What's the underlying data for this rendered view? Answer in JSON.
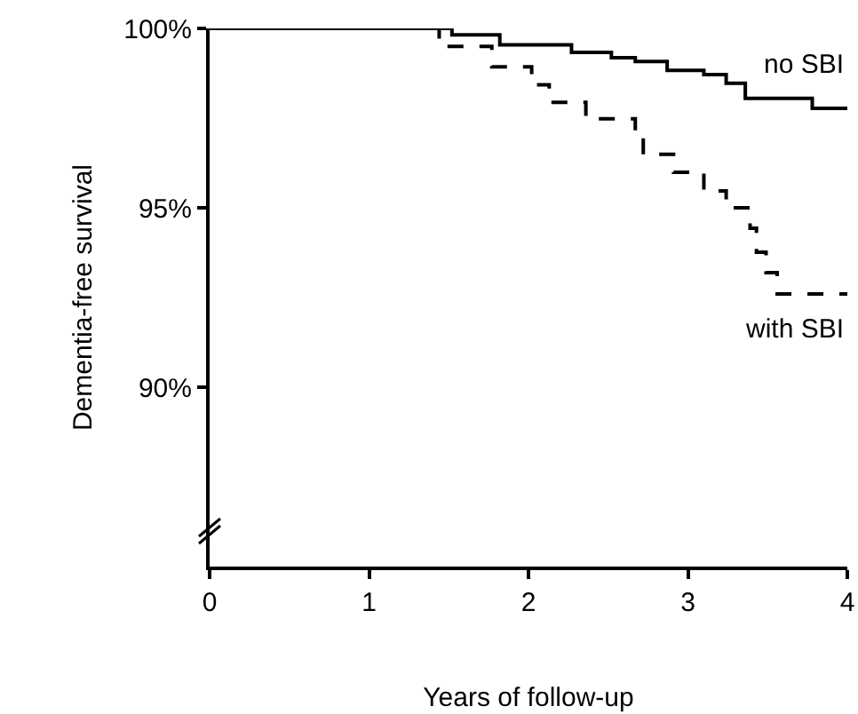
{
  "chart_data": {
    "type": "step",
    "xlabel": "Years of follow-up",
    "ylabel": "Dementia-free survival",
    "xlim": [
      0,
      4
    ],
    "xticks": [
      0,
      1,
      2,
      3,
      4
    ],
    "ylim": [
      85,
      100
    ],
    "yticks": [
      {
        "value": 90,
        "label": "90%"
      },
      {
        "value": 95,
        "label": "95%"
      },
      {
        "value": 100,
        "label": "100%"
      }
    ],
    "grid": false,
    "legend": false,
    "series": [
      {
        "name": "no SBI",
        "color": "#000000",
        "line_style": "solid",
        "x": [
          0,
          1.52,
          1.82,
          2.27,
          2.52,
          2.67,
          2.87,
          3.1,
          3.24,
          3.36,
          3.78,
          4
        ],
        "values": [
          100,
          99.82,
          99.54,
          99.33,
          99.18,
          99.08,
          98.83,
          98.71,
          98.47,
          98.05,
          97.77,
          97.77
        ]
      },
      {
        "name": "with SBI",
        "color": "#000000",
        "line_style": "dashed",
        "x": [
          0,
          1.44,
          1.77,
          2.02,
          2.13,
          2.36,
          2.67,
          2.72,
          2.91,
          3.1,
          3.24,
          3.39,
          3.43,
          3.49,
          3.56,
          4
        ],
        "values": [
          100,
          99.5,
          98.93,
          98.43,
          97.94,
          97.48,
          96.98,
          96.49,
          95.99,
          95.47,
          95.0,
          94.43,
          93.76,
          93.19,
          92.6,
          92.6
        ]
      }
    ]
  }
}
